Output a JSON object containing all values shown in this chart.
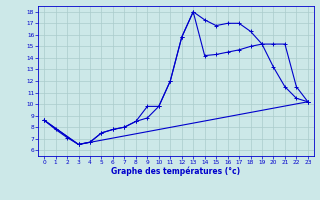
{
  "xlabel": "Graphe des températures (°c)",
  "bg_color": "#cce8e8",
  "line_color": "#0000cc",
  "grid_color": "#aacccc",
  "xlim": [
    -0.5,
    23.5
  ],
  "ylim": [
    5.5,
    18.5
  ],
  "xticks": [
    0,
    1,
    2,
    3,
    4,
    5,
    6,
    7,
    8,
    9,
    10,
    11,
    12,
    13,
    14,
    15,
    16,
    17,
    18,
    19,
    20,
    21,
    22,
    23
  ],
  "yticks": [
    6,
    7,
    8,
    9,
    10,
    11,
    12,
    13,
    14,
    15,
    16,
    17,
    18
  ],
  "line1_x": [
    0,
    1,
    2,
    3,
    4,
    5,
    6,
    7,
    8,
    9,
    10,
    11,
    12,
    13,
    14,
    15,
    16,
    17,
    18,
    19,
    20,
    21,
    22,
    23
  ],
  "line1_y": [
    8.6,
    7.8,
    7.1,
    6.5,
    6.7,
    7.5,
    7.8,
    8.0,
    8.5,
    9.8,
    9.8,
    12.0,
    15.8,
    18.0,
    17.3,
    16.8,
    17.0,
    17.0,
    16.3,
    15.2,
    13.2,
    11.5,
    10.5,
    10.2
  ],
  "line2_x": [
    0,
    3,
    4,
    5,
    6,
    7,
    8,
    9,
    10,
    11,
    12,
    13,
    14,
    15,
    16,
    17,
    18,
    19,
    20,
    21,
    22,
    23
  ],
  "line2_y": [
    8.6,
    6.5,
    6.7,
    7.5,
    7.8,
    8.0,
    8.5,
    8.8,
    9.8,
    12.0,
    15.8,
    18.0,
    14.2,
    14.3,
    14.5,
    14.7,
    15.0,
    15.2,
    15.2,
    15.2,
    11.5,
    10.2
  ],
  "line3_x": [
    0,
    3,
    23
  ],
  "line3_y": [
    8.6,
    6.5,
    10.2
  ]
}
